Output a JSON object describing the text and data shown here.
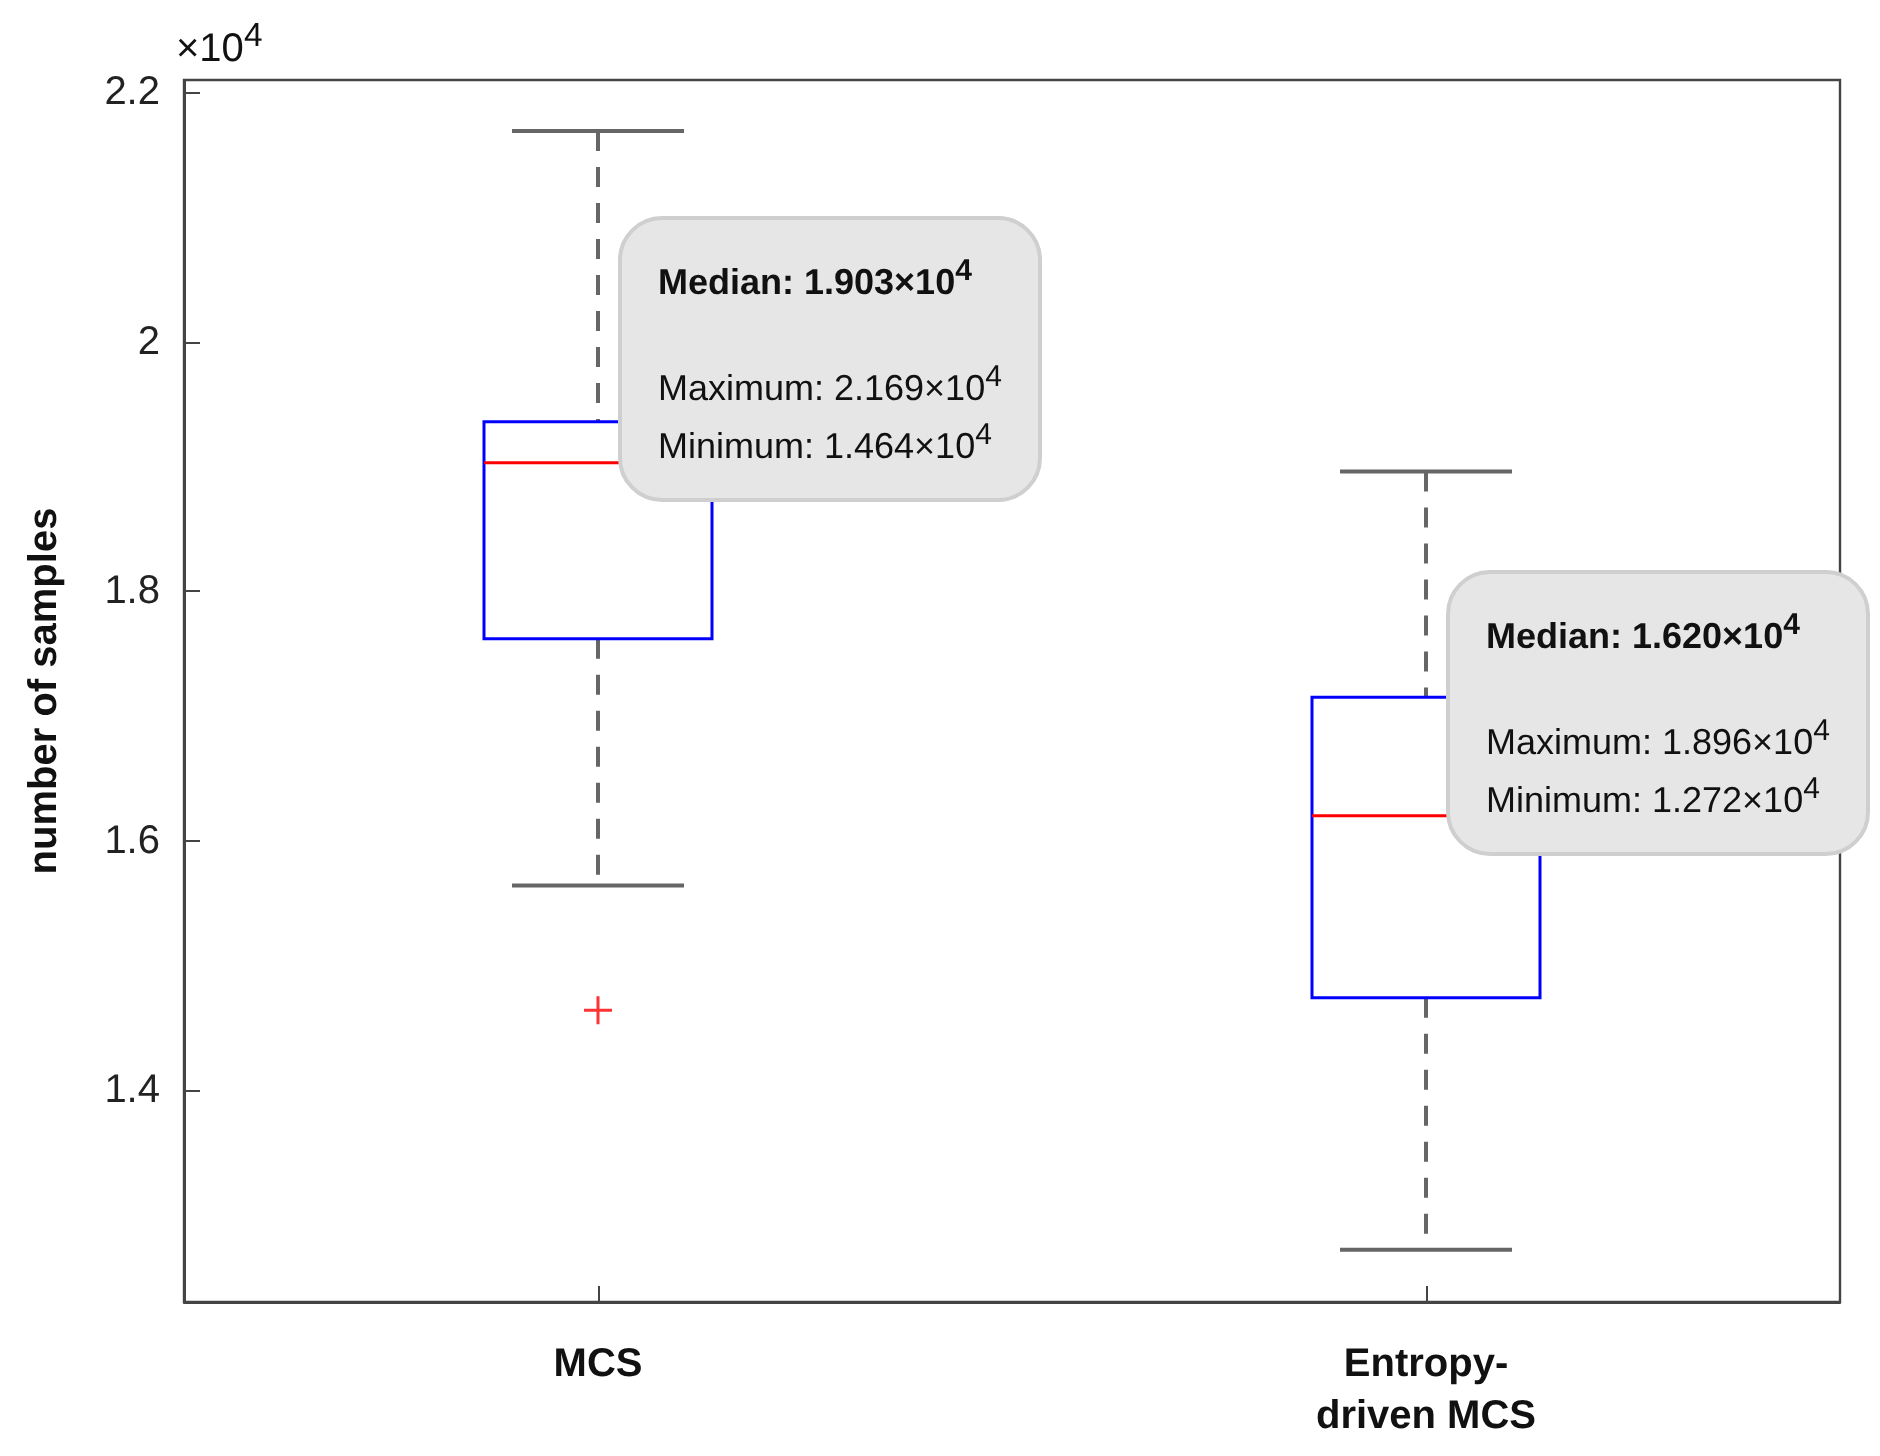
{
  "chart_data": {
    "type": "box",
    "ylabel": "number of samples",
    "categories": [
      "MCS",
      "Entropy-driven MCS"
    ],
    "color": "#0000ff",
    "line_style": "dashed",
    "boxes": [
      {
        "low": 1.564,
        "q1": 1.762,
        "median": 1.903,
        "q3": 1.936,
        "high": 2.169,
        "outliers": [
          1.464
        ]
      },
      {
        "low": 1.272,
        "q1": 1.474,
        "median": 1.62,
        "q3": 1.715,
        "high": 1.896
      }
    ],
    "ylim": [
      1.23,
      2.21
    ],
    "yticks": [
      1.4,
      1.6,
      1.8,
      2,
      2.2
    ],
    "grid": false,
    "annotations": [
      "×10$^{4}$",
      "Median: 1.903×10$^{4}$",
      "Maximum: 2.169×10$^{4}$",
      "Minimum: 1.464×10$^{4}$",
      "Median: 1.620×10$^{4}$",
      "Maximum: 1.896×10$^{4}$",
      "Minimum: 1.272×10$^{4}$"
    ]
  }
}
